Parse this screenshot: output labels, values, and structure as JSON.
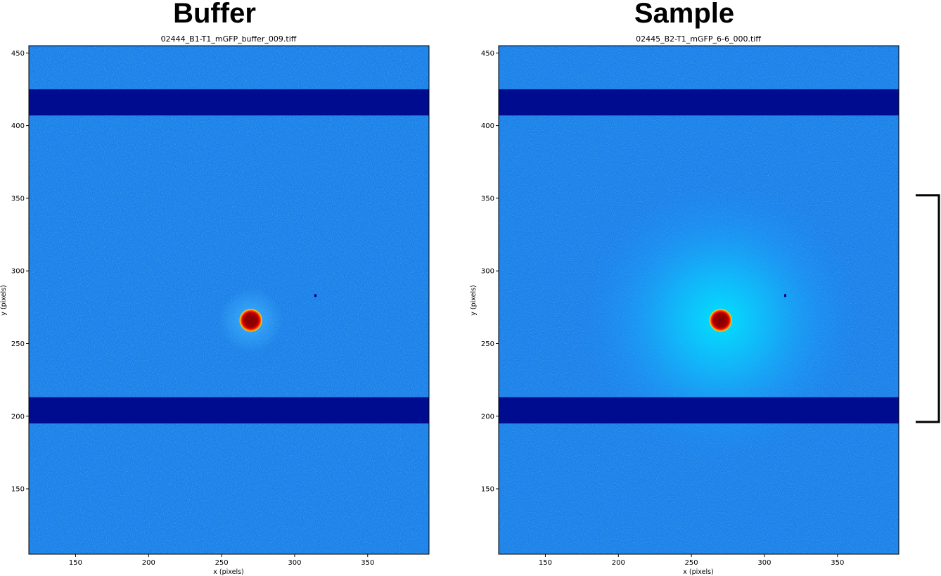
{
  "chart_data": [
    {
      "type": "heatmap",
      "heading": "Buffer",
      "title": "02444_B1-T1_mGFP_buffer_009.tiff",
      "xlabel": "x (pixels)",
      "ylabel": "y (pixels)",
      "xlim": [
        118,
        392
      ],
      "ylim": [
        105,
        455
      ],
      "xticks": [
        150,
        200,
        250,
        300,
        350
      ],
      "yticks": [
        150,
        200,
        250,
        300,
        350,
        400,
        450
      ],
      "colormap": "jet",
      "background_color": "#1a7fe8",
      "masked_bands": [
        [
          195,
          213
        ],
        [
          407,
          425
        ]
      ],
      "mask_color": "#000c8f",
      "beam_center": [
        270,
        266
      ],
      "beam_radius": 6,
      "beamstop_colors": [
        "#7f0000",
        "#d40000",
        "#ff4a00",
        "#ffd400"
      ],
      "scatter_halo_intensity": 0.05,
      "dead_pixel": [
        314,
        283
      ]
    },
    {
      "type": "heatmap",
      "heading": "Sample",
      "title": "02445_B2-T1_mGFP_6-6_000.tiff",
      "xlabel": "x (pixels)",
      "ylabel": "y (pixels)",
      "xlim": [
        118,
        392
      ],
      "ylim": [
        105,
        455
      ],
      "xticks": [
        150,
        200,
        250,
        300,
        350
      ],
      "yticks": [
        150,
        200,
        250,
        300,
        350,
        400,
        450
      ],
      "colormap": "jet",
      "background_color": "#1a7fe8",
      "masked_bands": [
        [
          195,
          213
        ],
        [
          407,
          425
        ]
      ],
      "mask_color": "#000c8f",
      "beam_center": [
        270,
        266
      ],
      "beam_radius": 6,
      "beamstop_colors": [
        "#7f0000",
        "#d40000",
        "#ff4a00",
        "#ffd400"
      ],
      "scatter_halo_intensity": 0.55,
      "halo_color": "#00e0ff",
      "dead_pixel": [
        314,
        283
      ]
    }
  ],
  "annotation": {
    "bracket_y_range": [
      196,
      352
    ],
    "color": "#000000"
  }
}
